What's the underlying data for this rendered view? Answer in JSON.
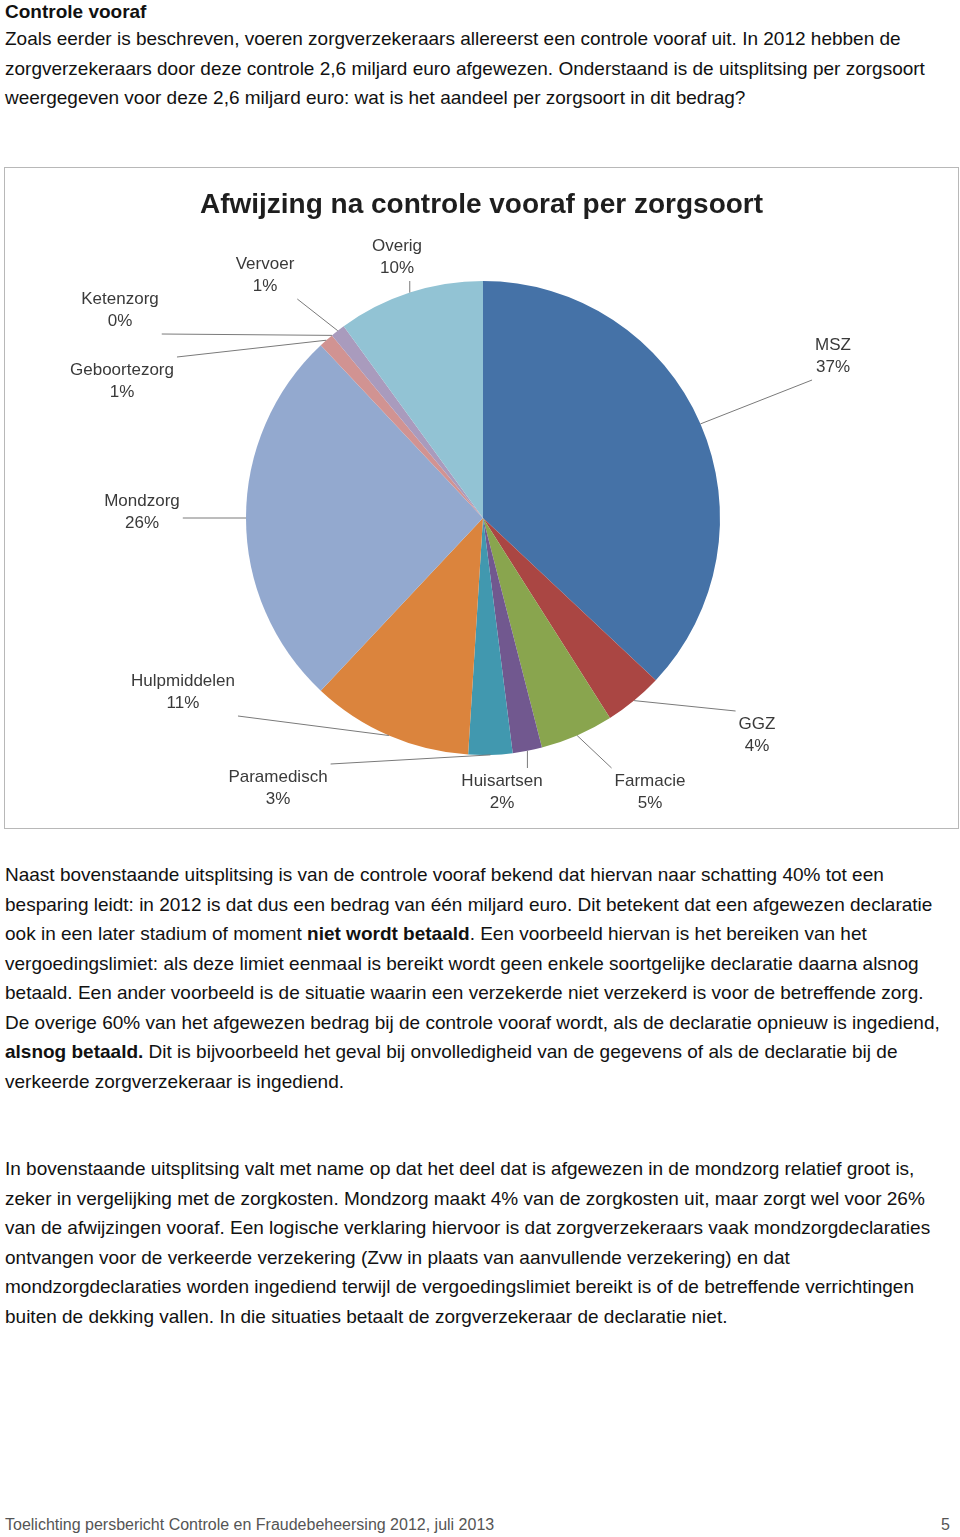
{
  "heading": "Controle vooraf",
  "intro": [
    {
      "text": "Zoals eerder is beschreven, voeren zorgverzekeraars allereerst een controle vooraf uit. In 2012 hebben de zorgverzekeraars door deze controle 2,6 miljard euro afgewezen. Onderstaand is de uitsplitsing per zorgsoort weergegeven voor deze 2,6 miljard euro: wat is het aandeel per zorgsoort in dit bedrag?",
      "bold": false
    }
  ],
  "chart_data": {
    "type": "pie",
    "title": "Afwijzing na controle vooraf per zorgsoort",
    "categories": [
      "MSZ",
      "GGZ",
      "Farmacie",
      "Huisartsen",
      "Paramedisch",
      "Hulpmiddelen",
      "Mondzorg",
      "Geboortezorg",
      "Ketenzorg",
      "Vervoer",
      "Overig"
    ],
    "values": [
      37,
      4,
      5,
      2,
      3,
      11,
      26,
      1,
      0,
      1,
      10
    ],
    "value_labels": [
      "37%",
      "4%",
      "5%",
      "2%",
      "3%",
      "11%",
      "26%",
      "1%",
      "0%",
      "1%",
      "10%"
    ],
    "colors": [
      "#4572a7",
      "#aa4643",
      "#89a54e",
      "#71588f",
      "#4198af",
      "#db843d",
      "#93a9cf",
      "#d19392",
      "#b9cd96",
      "#a99bbd",
      "#92c3d4"
    ],
    "data_labels": true
  },
  "paragraphs": [
    [
      {
        "text": "Naast bovenstaande uitsplitsing is van de controle vooraf bekend dat hiervan naar schatting 40% tot een besparing leidt: in 2012 is dat dus een bedrag van één miljard euro. Dit betekent dat een afgewezen declaratie ook in een later stadium of moment ",
        "bold": false
      },
      {
        "text": "niet wordt betaald",
        "bold": true
      },
      {
        "text": ". Een voorbeeld hiervan is het bereiken van het vergoedingslimiet: als deze limiet eenmaal is bereikt wordt geen enkele soortgelijke declaratie daarna alsnog betaald. Een ander voorbeeld is de situatie waarin een verzekerde niet verzekerd is voor de betreffende zorg.",
        "bold": false
      }
    ],
    [
      {
        "text": "De overige 60% van het afgewezen bedrag bij de controle vooraf wordt, als de declaratie opnieuw is ingediend, ",
        "bold": false
      },
      {
        "text": "alsnog betaald.",
        "bold": true
      },
      {
        "text": " Dit is bijvoorbeeld het geval bij onvolledigheid van de gegevens of als de declaratie bij de verkeerde zorgverzekeraar is ingediend.",
        "bold": false
      }
    ],
    [
      {
        "text": "In bovenstaande uitsplitsing valt met name op dat het deel dat is afgewezen in de mondzorg relatief groot is, zeker in vergelijking met de zorgkosten. Mondzorg maakt 4% van de zorgkosten uit, maar zorgt wel voor 26% van de afwijzingen vooraf. Een logische verklaring hiervoor is dat zorgverzekeraars vaak mondzorgdeclaraties ontvangen voor de verkeerde verzekering (Zvw in plaats van aanvullende verzekering) en dat mondzorgdeclaraties worden ingediend terwijl de vergoedingslimiet bereikt is of de betreffende verrichtingen buiten de dekking vallen. In die situaties betaalt de zorgverzekeraar de declaratie niet.",
        "bold": false
      }
    ]
  ],
  "footer": {
    "left": "Toelichting persbericht Controle en Fraudebeheersing 2012, juli 2013",
    "page": "5"
  }
}
